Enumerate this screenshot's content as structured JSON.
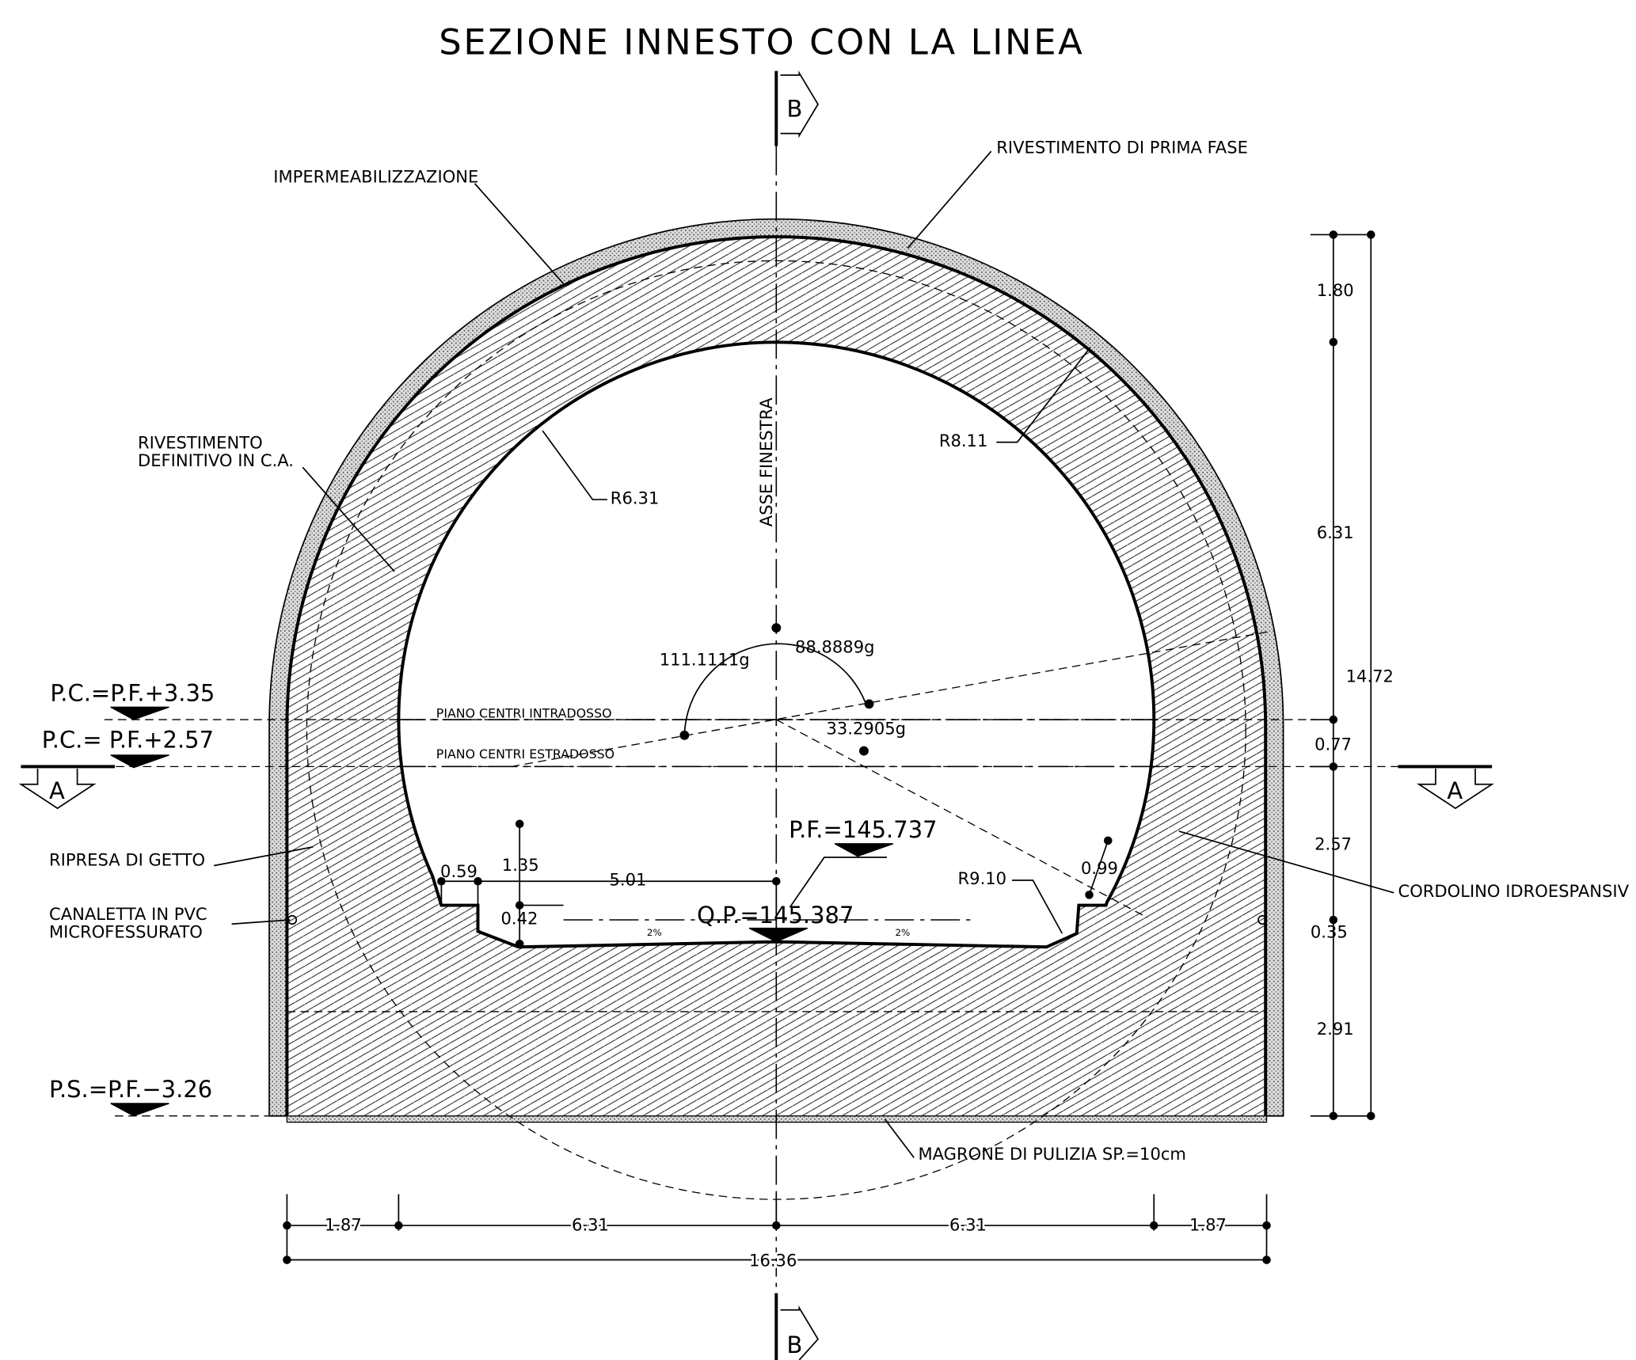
{
  "title": "SEZIONE INNESTO CON LA LINEA",
  "section_markers": {
    "b_top": "B",
    "b_bottom": "B",
    "a_left": "A",
    "a_right": "A"
  },
  "labels": {
    "prima_fase": "RIVESTIMENTO DI PRIMA FASE",
    "impermeabilizzazione": "IMPERMEABILIZZAZIONE",
    "definitivo_1": "RIVESTIMENTO",
    "definitivo_2": "DEFINITIVO IN C.A.",
    "asse": "ASSE FINESTRA",
    "piano_intradosso": "PIANO CENTRI INTRADOSSO",
    "piano_estradosso": "PIANO CENTRI ESTRADOSSO",
    "ripresa": "RIPRESA DI GETTO",
    "canaletta_1": "CANALETTA IN PVC",
    "canaletta_2": "MICROFESSURATO",
    "cordolino": "CORDOLINO IDROESPANSIV",
    "magrone": "MAGRONE DI PULIZIA SP.=10cm",
    "slope_left": "2%",
    "slope_right": "2%"
  },
  "levels": {
    "pc_intradosso": "P.C.=P.F.+3.35",
    "pc_estradosso": "P.C.= P.F.+2.57",
    "pf": "P.F.=145.737",
    "qp": "Q.P.=145.387",
    "ps": "P.S.=P.F.−3.26"
  },
  "radii": {
    "outer": "R8.11",
    "inner": "R6.31",
    "corner": "R9.10"
  },
  "angles": {
    "left": "111.1111g",
    "right": "88.8889g",
    "low": "33.2905g"
  },
  "dimensions": {
    "inner": {
      "d059": "0.59",
      "d135": "1.35",
      "d042": "0.42",
      "d501": "5.01",
      "d099": "0.99"
    },
    "right": {
      "d180": "1.80",
      "d631": "6.31",
      "d1472": "14.72",
      "d077": "0.77",
      "d257": "2.57",
      "d035": "0.35",
      "d291": "2.91"
    },
    "bottom": {
      "d187a": "1.87",
      "d631a": "6.31",
      "d631b": "6.31",
      "d187b": "1.87",
      "d1636": "16.36"
    }
  }
}
